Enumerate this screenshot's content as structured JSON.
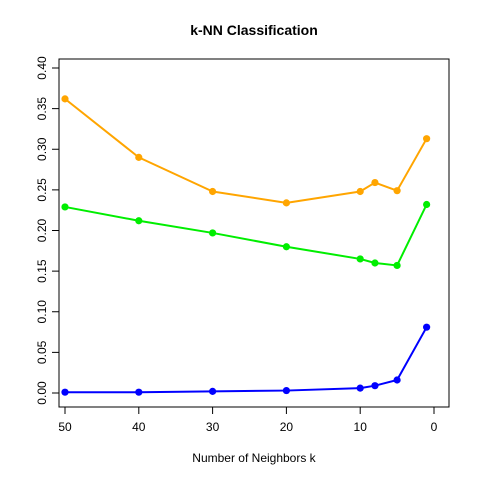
{
  "chart_data": {
    "type": "line",
    "title": "k-NN Classification",
    "xlabel": "Number of Neighbors k",
    "ylabel": "",
    "x_reversed": true,
    "xlim": [
      50,
      0
    ],
    "ylim": [
      0,
      0.4
    ],
    "xticks": [
      50,
      40,
      30,
      20,
      10,
      0
    ],
    "yticks": [
      0.0,
      0.05,
      0.1,
      0.15,
      0.2,
      0.25,
      0.3,
      0.35,
      0.4
    ],
    "ytick_labels": [
      "0.00",
      "0.05",
      "0.10",
      "0.15",
      "0.20",
      "0.25",
      "0.30",
      "0.35",
      "0.40"
    ],
    "grid": false,
    "x": [
      50,
      40,
      30,
      20,
      10,
      8,
      5,
      1
    ],
    "series": [
      {
        "color": "#FFA500",
        "values": [
          0.362,
          0.29,
          0.248,
          0.234,
          0.248,
          0.259,
          0.249,
          0.313
        ]
      },
      {
        "color": "#00EE00",
        "values": [
          0.229,
          0.212,
          0.197,
          0.18,
          0.165,
          0.16,
          0.157,
          0.232
        ]
      },
      {
        "color": "#0000FF",
        "values": [
          0.001,
          0.001,
          0.002,
          0.003,
          0.006,
          0.009,
          0.016,
          0.081
        ]
      }
    ]
  }
}
